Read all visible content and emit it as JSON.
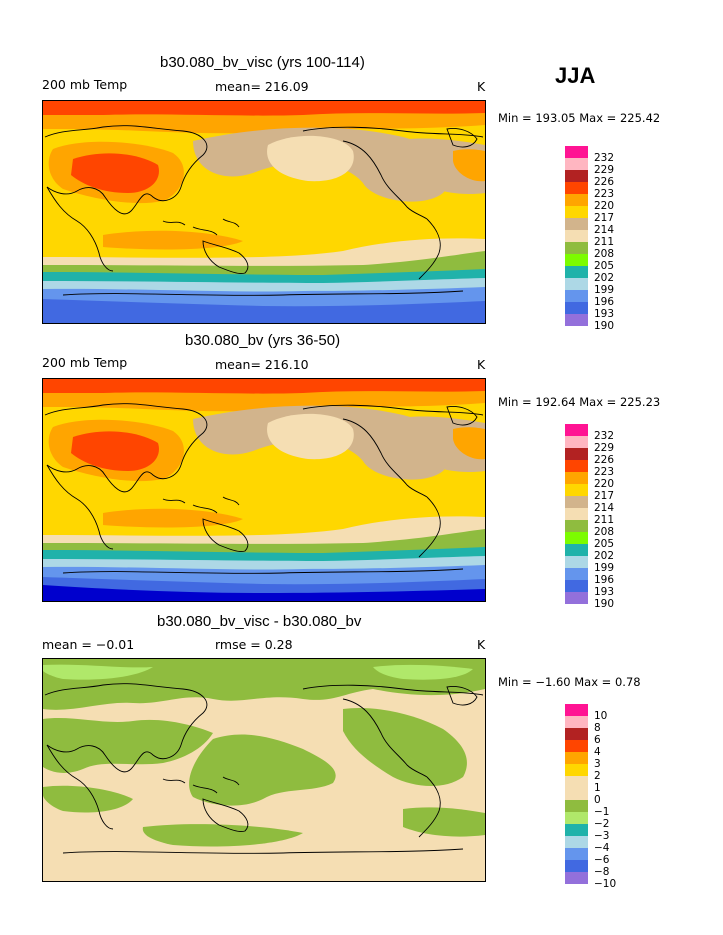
{
  "season": "JJA",
  "palette": [
    "#9370db",
    "#0000cd",
    "#4169e1",
    "#6495ed",
    "#add8e6",
    "#20b2aa",
    "#7cfc00",
    "#8fbc3f",
    "#f5deb3",
    "#d2b48c",
    "#ffd700",
    "#ffa500",
    "#ff4500",
    "#b22222",
    "#ffb6c1",
    "#ff1493"
  ],
  "panels": [
    {
      "title": "b30.080_bv_visc (yrs 100-114)",
      "left_label": "200 mb Temp",
      "center_label": "mean= 216.09",
      "right_label": "K",
      "minmax": "Min = 193.05 Max = 225.42",
      "legend_labels": [
        "232",
        "229",
        "226",
        "223",
        "220",
        "217",
        "214",
        "211",
        "208",
        "205",
        "202",
        "199",
        "196",
        "193",
        "190"
      ]
    },
    {
      "title": "b30.080_bv (yrs 36-50)",
      "left_label": "200 mb Temp",
      "center_label": "mean= 216.10",
      "right_label": "K",
      "minmax": "Min = 192.64 Max = 225.23",
      "legend_labels": [
        "232",
        "229",
        "226",
        "223",
        "220",
        "217",
        "214",
        "211",
        "208",
        "205",
        "202",
        "199",
        "196",
        "193",
        "190"
      ]
    },
    {
      "title": "b30.080_bv_visc - b30.080_bv",
      "left_label": "mean = −0.01",
      "center_label": "rmse = 0.28",
      "right_label": "K",
      "minmax": "Min = −1.60 Max = 0.78",
      "legend_labels": [
        "10",
        "8",
        "6",
        "4",
        "3",
        "2",
        "1",
        "0",
        "−1",
        "−2",
        "−3",
        "−4",
        "−6",
        "−8",
        "−10"
      ]
    }
  ]
}
